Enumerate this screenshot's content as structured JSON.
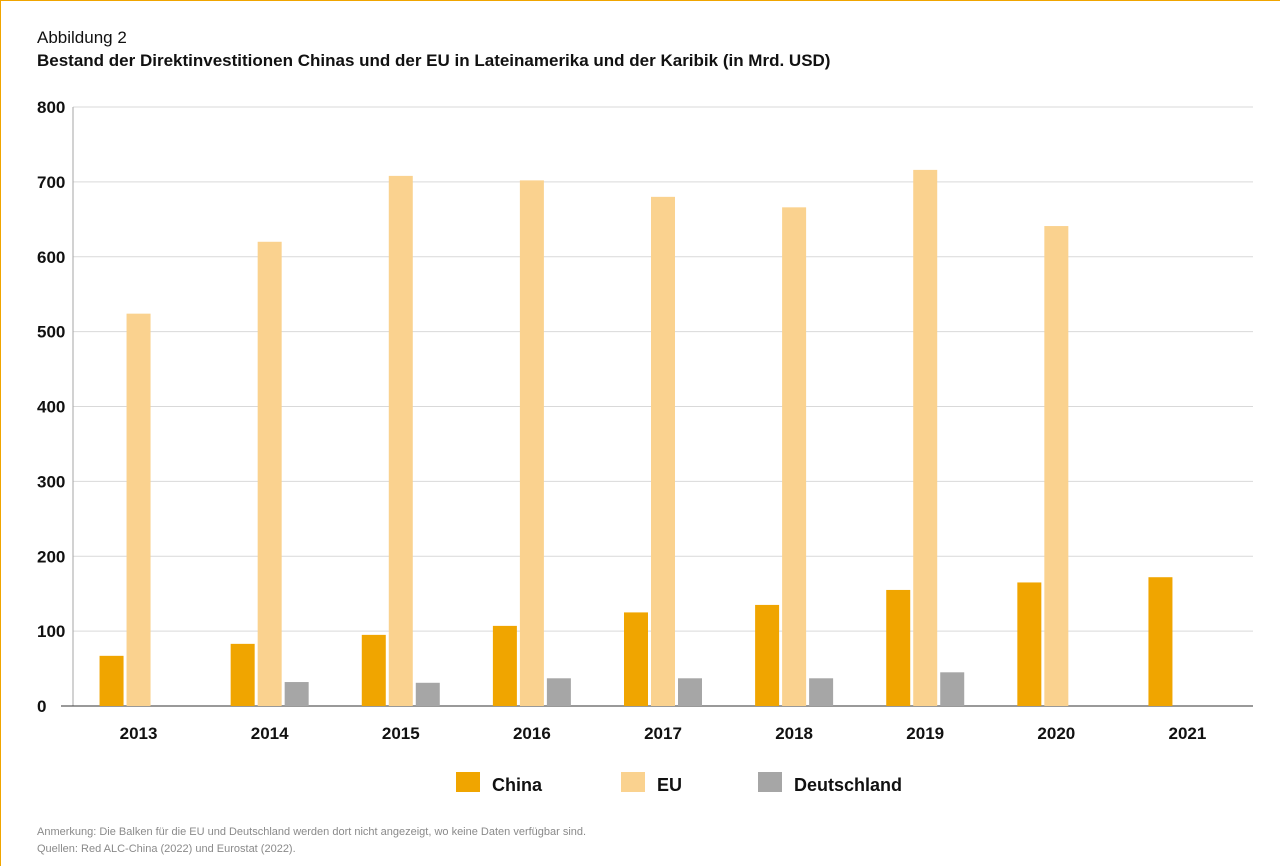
{
  "figure_label": "Abbildung 2",
  "title": "Bestand der Direktinvestitionen Chinas und der EU in Lateinamerika und der Karibik (in Mrd. USD)",
  "note": "Anmerkung: Die Balken für die EU und Deutschland werden dort nicht angezeigt, wo keine Daten verfügbar sind.",
  "source": "Quellen: Red ALC-China (2022) und Eurostat (2022).",
  "colors": {
    "frame": "#f0a500",
    "grid": "#d9d9d9"
  },
  "chart_data": {
    "type": "bar",
    "categories": [
      "2013",
      "2014",
      "2015",
      "2016",
      "2017",
      "2018",
      "2019",
      "2020",
      "2021"
    ],
    "series": [
      {
        "name": "China",
        "color": "#f0a500",
        "values": [
          67,
          83,
          95,
          107,
          125,
          135,
          155,
          165,
          172
        ]
      },
      {
        "name": "EU",
        "color": "#fad28f",
        "values": [
          524,
          620,
          708,
          702,
          680,
          666,
          716,
          641,
          null
        ]
      },
      {
        "name": "Deutschland",
        "color": "#a6a6a6",
        "values": [
          null,
          32,
          31,
          37,
          37,
          37,
          45,
          null,
          null
        ]
      }
    ],
    "ylim": [
      0,
      800
    ],
    "yticks": [
      "0",
      "100",
      "200",
      "300",
      "400",
      "500",
      "600",
      "700",
      "800"
    ],
    "grid": true,
    "legend": "bottom-center",
    "xlabel": "",
    "ylabel": ""
  }
}
